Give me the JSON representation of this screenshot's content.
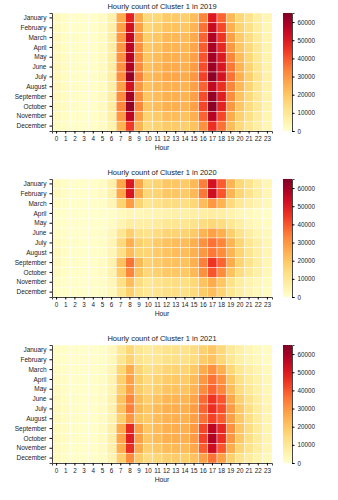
{
  "chart_data": [
    {
      "type": "heatmap",
      "title": "Hourly count of Cluster 1 in 2019",
      "xlabel": "Hour",
      "x": [
        0,
        1,
        2,
        3,
        4,
        5,
        6,
        7,
        8,
        9,
        10,
        11,
        12,
        13,
        14,
        15,
        16,
        17,
        18,
        19,
        20,
        21,
        22,
        23
      ],
      "y": [
        "January",
        "February",
        "March",
        "April",
        "May",
        "June",
        "July",
        "August",
        "September",
        "October",
        "November",
        "December"
      ],
      "values": [
        [
          2500,
          1200,
          700,
          600,
          700,
          1700,
          6000,
          26000,
          48000,
          26000,
          15000,
          16000,
          19000,
          19000,
          18000,
          22000,
          33000,
          50000,
          38000,
          23000,
          16000,
          12000,
          7500,
          4200
        ],
        [
          2700,
          1300,
          800,
          600,
          700,
          1800,
          6500,
          28000,
          52000,
          28000,
          16000,
          18000,
          21000,
          21000,
          20000,
          24000,
          36000,
          54000,
          42000,
          25000,
          17000,
          13000,
          8000,
          4500
        ],
        [
          3000,
          1500,
          900,
          700,
          800,
          2000,
          7000,
          30000,
          55000,
          30000,
          18000,
          20000,
          23000,
          23000,
          22000,
          26000,
          38000,
          58000,
          45000,
          28000,
          19000,
          14000,
          9000,
          5000
        ],
        [
          3100,
          1500,
          900,
          700,
          800,
          2000,
          7000,
          30000,
          56000,
          31000,
          19000,
          21000,
          24000,
          24000,
          23000,
          27000,
          39000,
          59000,
          47000,
          30000,
          20000,
          15000,
          9500,
          5200
        ],
        [
          3300,
          1600,
          1000,
          700,
          800,
          2100,
          7300,
          31000,
          57000,
          32000,
          20000,
          22000,
          25000,
          25000,
          24000,
          28000,
          40000,
          60000,
          50000,
          33000,
          22000,
          16000,
          10000,
          5500
        ],
        [
          3500,
          1700,
          1000,
          700,
          800,
          2100,
          7200,
          31000,
          58000,
          32000,
          21000,
          23000,
          26000,
          26000,
          25000,
          29000,
          41000,
          61000,
          51000,
          35000,
          24000,
          17000,
          11000,
          6000
        ],
        [
          3700,
          1800,
          1100,
          800,
          900,
          2200,
          7500,
          32000,
          62000,
          34000,
          22000,
          24000,
          27000,
          27000,
          26000,
          30000,
          43000,
          63000,
          52000,
          36000,
          25000,
          18000,
          11500,
          6300
        ],
        [
          3500,
          1700,
          1000,
          700,
          800,
          2000,
          6800,
          28000,
          52000,
          30000,
          21000,
          23000,
          25000,
          25000,
          24000,
          28000,
          38000,
          55000,
          46000,
          33000,
          23000,
          16500,
          10500,
          5800
        ],
        [
          3300,
          1600,
          1000,
          700,
          800,
          2100,
          7400,
          32000,
          60000,
          32000,
          20000,
          22000,
          25000,
          25000,
          24000,
          28000,
          41000,
          62000,
          49000,
          32000,
          21000,
          15000,
          9800,
          5300
        ],
        [
          3200,
          1600,
          900,
          700,
          800,
          2100,
          7500,
          33000,
          62000,
          33000,
          20000,
          22000,
          25000,
          25000,
          24000,
          28000,
          42000,
          63000,
          48000,
          30000,
          20000,
          14500,
          9500,
          5100
        ],
        [
          2800,
          1400,
          800,
          600,
          700,
          1900,
          6800,
          30000,
          56000,
          29000,
          17000,
          19000,
          22000,
          22000,
          21000,
          25000,
          38000,
          57000,
          42000,
          26000,
          17500,
          13000,
          8200,
          4600
        ],
        [
          2400,
          1200,
          700,
          600,
          700,
          1600,
          5500,
          24000,
          44000,
          24000,
          15000,
          17000,
          19000,
          19000,
          18000,
          21000,
          31000,
          46000,
          36000,
          22000,
          15000,
          11000,
          7000,
          4000
        ]
      ],
      "colorbar": {
        "range": [
          0,
          65000
        ],
        "ticks": [
          0,
          10000,
          20000,
          30000,
          40000,
          50000,
          60000
        ]
      }
    },
    {
      "type": "heatmap",
      "title": "Hourly count of Cluster 1 in 2020",
      "xlabel": "Hour",
      "x": [
        0,
        1,
        2,
        3,
        4,
        5,
        6,
        7,
        8,
        9,
        10,
        11,
        12,
        13,
        14,
        15,
        16,
        17,
        18,
        19,
        20,
        21,
        22,
        23
      ],
      "y": [
        "January",
        "February",
        "March",
        "April",
        "May",
        "June",
        "July",
        "August",
        "September",
        "October",
        "November",
        "December"
      ],
      "values": [
        [
          2600,
          1300,
          800,
          600,
          700,
          1800,
          6200,
          27000,
          50000,
          27000,
          15000,
          17000,
          20000,
          20000,
          19000,
          23000,
          34000,
          52000,
          39000,
          24000,
          16000,
          12000,
          7600,
          4300
        ],
        [
          2700,
          1300,
          800,
          600,
          700,
          1800,
          6300,
          27000,
          51000,
          27000,
          16000,
          17000,
          20000,
          20000,
          19000,
          23000,
          35000,
          53000,
          40000,
          24000,
          16500,
          12000,
          7800,
          4400
        ],
        [
          2000,
          1000,
          600,
          500,
          600,
          1400,
          4500,
          17000,
          29000,
          17000,
          11000,
          12500,
          14000,
          14000,
          13500,
          16000,
          22000,
          30000,
          24000,
          15000,
          10000,
          7500,
          5000,
          3000
        ],
        [
          800,
          400,
          300,
          200,
          200,
          400,
          1000,
          2500,
          3500,
          3500,
          4000,
          5000,
          6000,
          6500,
          6500,
          7000,
          7500,
          8000,
          7000,
          5500,
          3500,
          2500,
          1600,
          1000
        ],
        [
          1200,
          600,
          400,
          300,
          300,
          700,
          1800,
          5000,
          8000,
          7000,
          7500,
          9000,
          10500,
          11000,
          11000,
          12000,
          14000,
          16000,
          14000,
          10500,
          7000,
          4500,
          2800,
          1700
        ],
        [
          2000,
          1000,
          600,
          400,
          500,
          1200,
          3500,
          11000,
          18000,
          13000,
          12000,
          14500,
          16500,
          17000,
          17000,
          19000,
          24000,
          28000,
          25000,
          18000,
          12000,
          8000,
          5000,
          3000
        ],
        [
          2800,
          1400,
          900,
          600,
          600,
          1500,
          4500,
          15000,
          25000,
          18000,
          16000,
          19000,
          21000,
          22000,
          22000,
          25000,
          31000,
          36000,
          33000,
          24000,
          16500,
          11000,
          7000,
          4200
        ],
        [
          3000,
          1500,
          900,
          600,
          600,
          1400,
          4000,
          13000,
          22000,
          17000,
          16500,
          19000,
          21000,
          22000,
          22000,
          25000,
          30000,
          35000,
          32000,
          24000,
          17000,
          11500,
          7500,
          4500
        ],
        [
          3000,
          1500,
          900,
          600,
          700,
          1800,
          5500,
          21000,
          36000,
          23000,
          17000,
          19000,
          21000,
          21500,
          21000,
          25000,
          34000,
          45000,
          38000,
          26000,
          17000,
          12000,
          7800,
          4500
        ],
        [
          2600,
          1300,
          800,
          600,
          700,
          1700,
          5200,
          19000,
          33000,
          21000,
          15500,
          17500,
          19500,
          20000,
          19500,
          23000,
          31000,
          40000,
          32000,
          21000,
          14000,
          10000,
          6500,
          3800
        ],
        [
          1600,
          800,
          500,
          400,
          500,
          1200,
          3800,
          13000,
          22000,
          14000,
          10500,
          12000,
          13500,
          14000,
          13500,
          16000,
          21000,
          26000,
          20000,
          12500,
          8000,
          5500,
          3500,
          2200
        ],
        [
          1500,
          800,
          500,
          400,
          400,
          1000,
          3200,
          11000,
          18000,
          12500,
          10000,
          11500,
          13000,
          13500,
          13000,
          15000,
          19000,
          22000,
          17000,
          11000,
          7000,
          5000,
          3200,
          2000
        ]
      ],
      "colorbar": {
        "range": [
          0,
          65000
        ],
        "ticks": [
          0,
          10000,
          20000,
          30000,
          40000,
          50000,
          60000
        ]
      }
    },
    {
      "type": "heatmap",
      "title": "Hourly count of Cluster 1 in 2021",
      "xlabel": "Hour",
      "x": [
        0,
        1,
        2,
        3,
        4,
        5,
        6,
        7,
        8,
        9,
        10,
        11,
        12,
        13,
        14,
        15,
        16,
        17,
        18,
        19,
        20,
        21,
        22,
        23
      ],
      "y": [
        "January",
        "February",
        "March",
        "April",
        "May",
        "June",
        "July",
        "August",
        "September",
        "October",
        "November",
        "December"
      ],
      "values": [
        [
          1400,
          700,
          400,
          300,
          400,
          1000,
          3000,
          10000,
          16000,
          11000,
          9000,
          10500,
          12000,
          12500,
          12000,
          14000,
          17500,
          20000,
          15500,
          10000,
          6500,
          4500,
          2800,
          1800
        ],
        [
          1500,
          700,
          400,
          300,
          400,
          1000,
          3200,
          11000,
          17000,
          11500,
          9500,
          11000,
          12500,
          13000,
          12500,
          14500,
          18500,
          21000,
          16000,
          10500,
          6800,
          4700,
          3000,
          1900
        ],
        [
          2000,
          1000,
          600,
          400,
          500,
          1400,
          4500,
          16000,
          26000,
          16500,
          12500,
          14500,
          16500,
          17000,
          16500,
          19500,
          26000,
          31000,
          25000,
          16000,
          10500,
          7500,
          4800,
          2800
        ],
        [
          2400,
          1200,
          700,
          500,
          600,
          1500,
          5000,
          18000,
          28000,
          18500,
          14500,
          17000,
          19000,
          19500,
          19000,
          22500,
          30000,
          36000,
          31000,
          20000,
          13000,
          9000,
          5800,
          3400
        ],
        [
          2600,
          1300,
          800,
          500,
          600,
          1500,
          5000,
          18000,
          28000,
          19000,
          15500,
          18000,
          20500,
          21000,
          20500,
          24000,
          32000,
          38000,
          33000,
          22000,
          14500,
          10000,
          6300,
          3700
        ],
        [
          3000,
          1500,
          900,
          600,
          600,
          1700,
          5800,
          21000,
          33000,
          22000,
          18000,
          21000,
          23500,
          24000,
          23500,
          27500,
          37000,
          45000,
          40000,
          27000,
          17500,
          12000,
          7500,
          4300
        ],
        [
          3300,
          1700,
          1000,
          700,
          700,
          1700,
          5800,
          21000,
          34000,
          23000,
          19500,
          22500,
          25000,
          25500,
          25000,
          29000,
          38000,
          46000,
          41000,
          29000,
          19500,
          13500,
          8500,
          4900
        ],
        [
          3300,
          1700,
          1000,
          700,
          700,
          1600,
          5200,
          18000,
          30000,
          21000,
          19000,
          22000,
          24500,
          25000,
          24500,
          28500,
          36000,
          43000,
          39000,
          28500,
          19500,
          13500,
          8500,
          5000
        ],
        [
          3200,
          1600,
          1000,
          700,
          800,
          2000,
          6500,
          26000,
          47000,
          28000,
          20000,
          22500,
          25000,
          25500,
          25000,
          29500,
          42000,
          56000,
          47000,
          31000,
          20000,
          14000,
          9000,
          5000
        ],
        [
          3200,
          1600,
          1000,
          700,
          800,
          2000,
          6800,
          27000,
          49000,
          28500,
          20000,
          22500,
          25000,
          25500,
          25000,
          29500,
          43000,
          58000,
          46000,
          30000,
          19500,
          13500,
          8800,
          5000
        ],
        [
          2800,
          1400,
          800,
          600,
          700,
          1800,
          6300,
          25000,
          46000,
          26000,
          18000,
          20000,
          22500,
          23000,
          22500,
          26500,
          39000,
          53000,
          40000,
          25500,
          16500,
          12000,
          7800,
          4400
        ],
        [
          2200,
          1100,
          700,
          500,
          600,
          1400,
          4800,
          18000,
          32000,
          19000,
          14000,
          16000,
          18000,
          18500,
          18000,
          21000,
          28000,
          36000,
          28000,
          17500,
          11500,
          8500,
          5500,
          3200
        ]
      ],
      "colorbar": {
        "range": [
          0,
          65000
        ],
        "ticks": [
          0,
          10000,
          20000,
          30000,
          40000,
          50000,
          60000
        ]
      }
    }
  ]
}
